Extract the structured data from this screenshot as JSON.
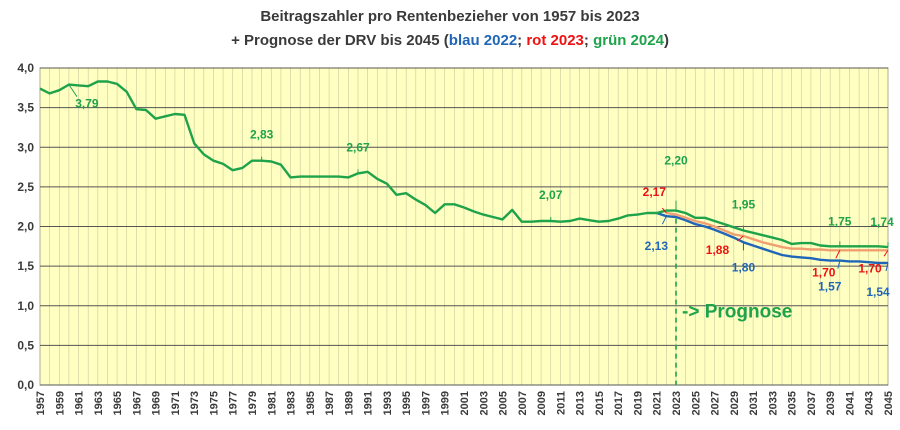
{
  "title": {
    "line1": "Beitragszahler pro Rentenbezieher von 1957 bis 2023",
    "line2_prefix": "+ Prognose der DRV bis 2045 (",
    "line2_blue": "blau 2022",
    "line2_sep1": "; ",
    "line2_red": "rot 2023",
    "line2_sep2": "; ",
    "line2_green": "grün 2024",
    "line2_suffix": ")"
  },
  "colors": {
    "plot_bg": "#ffffc2",
    "grid": "#9a9a55",
    "green": "#1ea24a",
    "red": "#ee1111",
    "orange": "#f0a070",
    "blue": "#1f66b8",
    "text": "#3a3a3a"
  },
  "chart_data": {
    "type": "line",
    "ylim": [
      0,
      4.0
    ],
    "yticks": [
      "0,0",
      "0,5",
      "1,0",
      "1,5",
      "2,0",
      "2,5",
      "3,0",
      "3,5",
      "4,0"
    ],
    "xlim": [
      1957,
      2045
    ],
    "xticks": [
      "1957",
      "1959",
      "1961",
      "1963",
      "1965",
      "1967",
      "1969",
      "1971",
      "1973",
      "1975",
      "1977",
      "1979",
      "1981",
      "1983",
      "1985",
      "1987",
      "1989",
      "1991",
      "1993",
      "1995",
      "1997",
      "1999",
      "2001",
      "2003",
      "2005",
      "2007",
      "2009",
      "2011",
      "2013",
      "2015",
      "2017",
      "2019",
      "2021",
      "2023",
      "2025",
      "2027",
      "2029",
      "2031",
      "2033",
      "2035",
      "2037",
      "2039",
      "2041",
      "2043",
      "2045"
    ],
    "prognosis_line_x": 2023,
    "prognosis_label": "-> Prognose",
    "series": [
      {
        "key": "historic",
        "color": "green",
        "x": [
          1957,
          1958,
          1959,
          1960,
          1961,
          1962,
          1963,
          1964,
          1965,
          1966,
          1967,
          1968,
          1969,
          1970,
          1971,
          1972,
          1973,
          1974,
          1975,
          1976,
          1977,
          1978,
          1979,
          1980,
          1981,
          1982,
          1983,
          1984,
          1985,
          1986,
          1987,
          1988,
          1989,
          1990,
          1991,
          1992,
          1993,
          1994,
          1995,
          1996,
          1997,
          1998,
          1999,
          2000,
          2001,
          2002,
          2003,
          2004,
          2005,
          2006,
          2007,
          2008,
          2009,
          2010,
          2011,
          2012,
          2013,
          2014,
          2015,
          2016,
          2017,
          2018,
          2019,
          2020,
          2021,
          2022,
          2023
        ],
        "values": [
          3.74,
          3.68,
          3.72,
          3.79,
          3.78,
          3.77,
          3.83,
          3.83,
          3.8,
          3.7,
          3.48,
          3.47,
          3.36,
          3.39,
          3.42,
          3.41,
          3.05,
          2.91,
          2.83,
          2.79,
          2.71,
          2.74,
          2.83,
          2.83,
          2.82,
          2.78,
          2.62,
          2.63,
          2.63,
          2.63,
          2.63,
          2.63,
          2.62,
          2.67,
          2.69,
          2.6,
          2.54,
          2.4,
          2.42,
          2.34,
          2.27,
          2.17,
          2.28,
          2.28,
          2.24,
          2.19,
          2.15,
          2.12,
          2.09,
          2.21,
          2.06,
          2.06,
          2.07,
          2.07,
          2.06,
          2.07,
          2.1,
          2.08,
          2.06,
          2.07,
          2.1,
          2.14,
          2.15,
          2.17,
          2.17,
          2.2,
          2.2
        ]
      },
      {
        "key": "forecast_2024",
        "color": "green",
        "x": [
          2023,
          2024,
          2025,
          2026,
          2027,
          2028,
          2029,
          2030,
          2031,
          2032,
          2033,
          2034,
          2035,
          2036,
          2037,
          2038,
          2039,
          2040,
          2041,
          2042,
          2043,
          2044,
          2045
        ],
        "values": [
          2.2,
          2.17,
          2.11,
          2.11,
          2.07,
          2.03,
          1.99,
          1.95,
          1.92,
          1.89,
          1.86,
          1.83,
          1.78,
          1.79,
          1.79,
          1.76,
          1.75,
          1.75,
          1.75,
          1.75,
          1.75,
          1.75,
          1.74
        ]
      },
      {
        "key": "forecast_2023",
        "color": "orange",
        "x": [
          2022,
          2023,
          2024,
          2025,
          2026,
          2027,
          2028,
          2029,
          2030,
          2031,
          2032,
          2033,
          2034,
          2035,
          2036,
          2037,
          2038,
          2039,
          2040,
          2041,
          2042,
          2043,
          2044,
          2045
        ],
        "values": [
          2.17,
          2.15,
          2.11,
          2.07,
          2.04,
          2.0,
          1.95,
          1.9,
          1.88,
          1.84,
          1.8,
          1.77,
          1.74,
          1.72,
          1.72,
          1.71,
          1.71,
          1.7,
          1.7,
          1.7,
          1.7,
          1.7,
          1.7,
          1.7
        ]
      },
      {
        "key": "forecast_2022",
        "color": "blue",
        "x": [
          2021,
          2022,
          2023,
          2024,
          2025,
          2026,
          2027,
          2028,
          2029,
          2030,
          2031,
          2032,
          2033,
          2034,
          2035,
          2036,
          2037,
          2038,
          2039,
          2040,
          2041,
          2042,
          2043,
          2044,
          2045
        ],
        "values": [
          2.17,
          2.13,
          2.12,
          2.08,
          2.03,
          2.0,
          1.96,
          1.91,
          1.86,
          1.8,
          1.76,
          1.72,
          1.68,
          1.64,
          1.62,
          1.61,
          1.6,
          1.58,
          1.57,
          1.57,
          1.56,
          1.56,
          1.55,
          1.54,
          1.54
        ]
      }
    ],
    "annotations": [
      {
        "text": "3,79",
        "color": "green",
        "x": 1960,
        "y": 3.79
      },
      {
        "text": "2,83",
        "color": "green",
        "x": 1980,
        "y": 2.83
      },
      {
        "text": "2,67",
        "color": "green",
        "x": 1990,
        "y": 2.67
      },
      {
        "text": "2,07",
        "color": "green",
        "x": 2010,
        "y": 2.07
      },
      {
        "text": "2,20",
        "color": "green",
        "x": 2023,
        "y": 2.2
      },
      {
        "text": "1,95",
        "color": "green",
        "x": 2030,
        "y": 1.95
      },
      {
        "text": "1,75",
        "color": "green",
        "x": 2040,
        "y": 1.75
      },
      {
        "text": "1,74",
        "color": "green",
        "x": 2045,
        "y": 1.74
      },
      {
        "text": "2,17",
        "color": "red",
        "x": 2022,
        "y": 2.17
      },
      {
        "text": "1,88",
        "color": "red",
        "x": 2030,
        "y": 1.88
      },
      {
        "text": "1,70",
        "color": "red",
        "x": 2040,
        "y": 1.7
      },
      {
        "text": "1,70",
        "color": "red",
        "x": 2045,
        "y": 1.7
      },
      {
        "text": "2,13",
        "color": "blue",
        "x": 2022,
        "y": 2.13
      },
      {
        "text": "1,80",
        "color": "blue",
        "x": 2030,
        "y": 1.8
      },
      {
        "text": "1,57",
        "color": "blue",
        "x": 2040,
        "y": 1.57
      },
      {
        "text": "1,54",
        "color": "blue",
        "x": 2045,
        "y": 1.54
      }
    ]
  }
}
